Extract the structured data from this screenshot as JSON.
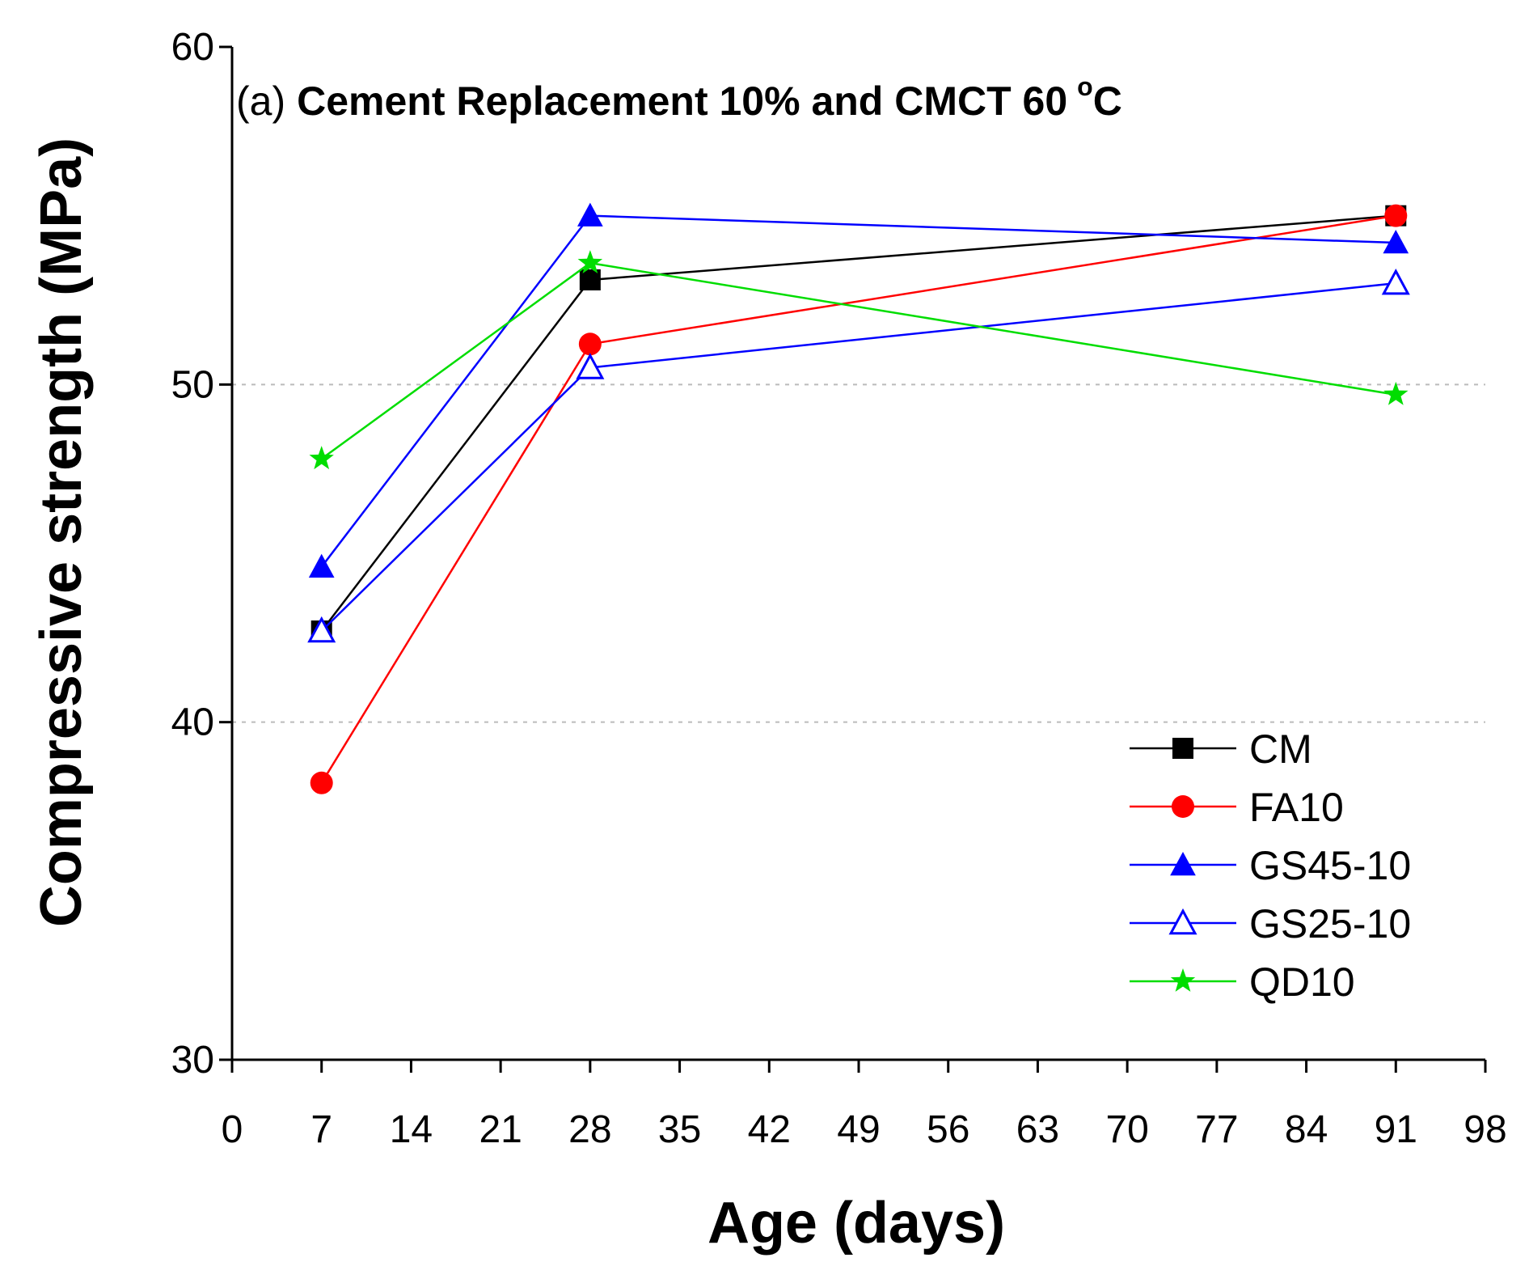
{
  "chart_data": {
    "type": "line",
    "title_prefix": "(a)",
    "title_main": "Cement Replacement 10% and CMCT 60",
    "title_degree": "o",
    "title_unit": "C",
    "xlabel": "Age (days)",
    "ylabel": "Compressive strength (MPa)",
    "xlim": [
      0,
      98
    ],
    "ylim": [
      30,
      60
    ],
    "xticks": [
      0,
      7,
      14,
      21,
      28,
      35,
      42,
      49,
      56,
      63,
      70,
      77,
      84,
      91,
      98
    ],
    "yticks": [
      30,
      40,
      50,
      60
    ],
    "gridlines_y": [
      40,
      50
    ],
    "legend_position": "bottom-right",
    "x": [
      7,
      28,
      91
    ],
    "series": [
      {
        "name": "CM",
        "color": "#000000",
        "marker": "square-filled",
        "values": [
          42.7,
          53.1,
          55.0
        ]
      },
      {
        "name": "FA10",
        "color": "#ff0000",
        "marker": "circle-filled",
        "values": [
          38.2,
          51.2,
          55.0
        ]
      },
      {
        "name": "GS45-10",
        "color": "#0000ff",
        "marker": "triangle-filled",
        "values": [
          44.6,
          55.0,
          54.2
        ]
      },
      {
        "name": "GS25-10",
        "color": "#0000ff",
        "marker": "triangle-open",
        "values": [
          42.7,
          50.5,
          53.0
        ]
      },
      {
        "name": "QD10",
        "color": "#00dd00",
        "marker": "star",
        "values": [
          47.8,
          53.6,
          49.7
        ]
      }
    ]
  }
}
